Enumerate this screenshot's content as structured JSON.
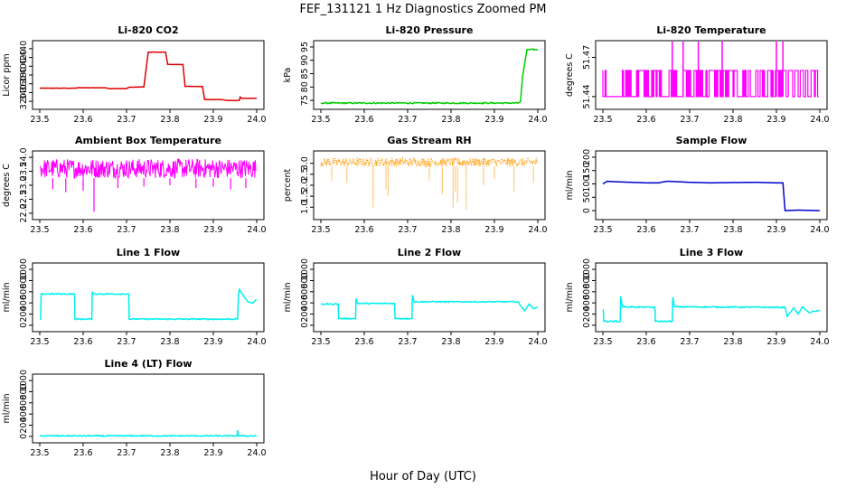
{
  "figure": {
    "title": "FEF_131121  1 Hz Diagnostics Zoomed PM",
    "xlabel": "Hour of Day (UTC)"
  },
  "chart_data": [
    {
      "type": "line",
      "title": "Li-820 CO2",
      "ylabel": "Licor ppm",
      "color": "#dd0000",
      "xlim": [
        23.5,
        24.0
      ],
      "xticks": [
        "23.5",
        "23.6",
        "23.7",
        "23.8",
        "23.9",
        "24.0"
      ],
      "ylim": [
        310,
        450
      ],
      "yticks": [
        "320",
        "340",
        "360",
        "380",
        "400",
        "420",
        "440"
      ],
      "series": [
        {
          "x": [
            23.5,
            23.58,
            23.59,
            23.65,
            23.66,
            23.7,
            23.705,
            23.74,
            23.75,
            23.79,
            23.795,
            23.83,
            23.835,
            23.875,
            23.88,
            23.92,
            23.93,
            23.96,
            23.962,
            23.965,
            23.97,
            24.0
          ],
          "y": [
            350,
            350,
            351,
            351,
            349,
            349,
            352,
            353,
            432,
            432,
            404,
            404,
            354,
            354,
            324,
            324,
            322,
            322,
            330,
            327,
            327,
            327
          ]
        }
      ]
    },
    {
      "type": "line",
      "title": "Li-820 Pressure",
      "ylabel": "kPa",
      "color": "#00cc00",
      "xlim": [
        23.5,
        24.0
      ],
      "xticks": [
        "23.5",
        "23.6",
        "23.7",
        "23.8",
        "23.9",
        "24.0"
      ],
      "ylim": [
        73,
        96
      ],
      "yticks": [
        "75",
        "80",
        "85",
        "90",
        "95"
      ],
      "series": [
        {
          "x": [
            23.5,
            23.9,
            23.91,
            23.955,
            23.96,
            23.965,
            23.97,
            23.975,
            24.0
          ],
          "y": [
            74,
            74,
            74,
            74,
            74.5,
            84,
            89,
            94,
            94
          ]
        }
      ]
    },
    {
      "type": "line",
      "title": "Li-820 Temperature",
      "ylabel": "degrees C",
      "color": "#ff00ff",
      "xlim": [
        23.5,
        24.0
      ],
      "xticks": [
        "23.5",
        "23.6",
        "23.7",
        "23.8",
        "23.9",
        "24.0"
      ],
      "ylim": [
        51.433,
        51.48
      ],
      "yticks": [
        "51.44",
        "51.47"
      ],
      "levels": [
        51.44,
        51.46,
        51.48
      ],
      "spikes_x": [
        23.66,
        23.685,
        23.72,
        23.775,
        23.9,
        23.915
      ]
    },
    {
      "type": "line",
      "title": "Ambient Box Temperature",
      "ylabel": "degrees C",
      "color": "#ff00ff",
      "xlim": [
        23.5,
        24.0
      ],
      "xticks": [
        "23.5",
        "23.6",
        "23.7",
        "23.8",
        "23.9",
        "24.0"
      ],
      "ylim": [
        21.9,
        24.1
      ],
      "yticks": [
        "22.0",
        "22.5",
        "23.0",
        "23.5",
        "24.0"
      ],
      "band": [
        23.25,
        23.95
      ],
      "dips": [
        [
          23.53,
          22.85
        ],
        [
          23.56,
          22.75
        ],
        [
          23.6,
          22.8
        ],
        [
          23.625,
          22.05
        ],
        [
          23.68,
          22.9
        ],
        [
          23.74,
          22.95
        ],
        [
          23.8,
          23.0
        ],
        [
          23.86,
          22.9
        ],
        [
          23.9,
          22.95
        ],
        [
          23.94,
          22.85
        ],
        [
          23.975,
          22.9
        ]
      ]
    },
    {
      "type": "scatter",
      "title": "Gas Stream RH",
      "ylabel": "percent",
      "color": "#ff9900",
      "xlim": [
        23.5,
        24.0
      ],
      "xticks": [
        "23.5",
        "23.6",
        "23.7",
        "23.8",
        "23.9",
        "24.0"
      ],
      "ylim": [
        0.6,
        3.4
      ],
      "yticks": [
        "1.0",
        "1.5",
        "2.0",
        "2.5",
        "3.0"
      ],
      "band": [
        2.85,
        3.25
      ],
      "dips": [
        [
          23.525,
          2.2
        ],
        [
          23.56,
          2.1
        ],
        [
          23.62,
          1.0
        ],
        [
          23.65,
          1.8
        ],
        [
          23.655,
          1.5
        ],
        [
          23.75,
          2.2
        ],
        [
          23.78,
          1.6
        ],
        [
          23.805,
          1.0
        ],
        [
          23.81,
          1.7
        ],
        [
          23.815,
          1.2
        ],
        [
          23.835,
          0.9
        ],
        [
          23.875,
          2.0
        ],
        [
          23.9,
          2.3
        ],
        [
          23.945,
          1.7
        ],
        [
          23.99,
          2.1
        ]
      ]
    },
    {
      "type": "line",
      "title": "Sample Flow",
      "ylabel": "ml/min",
      "color": "#0000cc",
      "xlim": [
        23.5,
        24.0
      ],
      "xticks": [
        "23.5",
        "23.6",
        "23.7",
        "23.8",
        "23.9",
        "24.0"
      ],
      "ylim": [
        -20,
        210
      ],
      "yticks": [
        "0",
        "50",
        "100",
        "150",
        "200"
      ],
      "series": [
        {
          "x": [
            23.5,
            23.51,
            23.53,
            23.6,
            23.63,
            23.64,
            23.65,
            23.7,
            23.75,
            23.8,
            23.85,
            23.9,
            23.915,
            23.92,
            23.95,
            24.0
          ],
          "y": [
            100,
            110,
            108,
            104,
            104,
            108,
            110,
            106,
            104,
            105,
            106,
            104,
            104,
            0,
            2,
            0
          ]
        }
      ]
    },
    {
      "type": "line",
      "title": "Line 1 Flow",
      "ylabel": "ml/min",
      "color": "#00eeee",
      "xlim": [
        23.5,
        24.0
      ],
      "xticks": [
        "23.5",
        "23.6",
        "23.7",
        "23.8",
        "23.9",
        "24.0"
      ],
      "ylim": [
        -50,
        1050
      ],
      "yticks": [
        "0",
        "200",
        "400",
        "600",
        "800",
        "1000"
      ],
      "series": [
        {
          "x": [
            23.5,
            23.502,
            23.503,
            23.58,
            23.581,
            23.62,
            23.621,
            23.623,
            23.7,
            23.705,
            23.706,
            23.955,
            23.956,
            23.958,
            23.96,
            23.97,
            23.98,
            23.99,
            24.0
          ],
          "y": [
            110,
            110,
            560,
            560,
            110,
            110,
            600,
            560,
            560,
            560,
            110,
            110,
            110,
            540,
            640,
            520,
            420,
            400,
            450
          ]
        }
      ]
    },
    {
      "type": "line",
      "title": "Line 2 Flow",
      "ylabel": "ml/min",
      "color": "#00eeee",
      "xlim": [
        23.5,
        24.0
      ],
      "xticks": [
        "23.5",
        "23.6",
        "23.7",
        "23.8",
        "23.9",
        "24.0"
      ],
      "ylim": [
        -50,
        1050
      ],
      "yticks": [
        "0",
        "200",
        "400",
        "600",
        "800",
        "1000"
      ],
      "series": [
        {
          "x": [
            23.5,
            23.54,
            23.541,
            23.58,
            23.581,
            23.585,
            23.67,
            23.671,
            23.71,
            23.711,
            23.715,
            23.955,
            23.96,
            23.97,
            23.98,
            23.99,
            24.0
          ],
          "y": [
            380,
            380,
            120,
            120,
            480,
            390,
            390,
            120,
            120,
            540,
            420,
            420,
            350,
            260,
            380,
            300,
            330
          ]
        }
      ]
    },
    {
      "type": "line",
      "title": "Line 3 Flow",
      "ylabel": "ml/min",
      "color": "#00eeee",
      "xlim": [
        23.5,
        24.0
      ],
      "xticks": [
        "23.5",
        "23.6",
        "23.7",
        "23.8",
        "23.9",
        "24.0"
      ],
      "ylim": [
        -50,
        1050
      ],
      "yticks": [
        "0",
        "200",
        "400",
        "600",
        "800",
        "1000"
      ],
      "series": [
        {
          "x": [
            23.5,
            23.501,
            23.502,
            23.54,
            23.541,
            23.545,
            23.62,
            23.621,
            23.66,
            23.661,
            23.665,
            23.92,
            23.925,
            23.94,
            23.95,
            23.96,
            23.975,
            23.99,
            24.0
          ],
          "y": [
            280,
            280,
            70,
            70,
            520,
            330,
            320,
            70,
            70,
            500,
            330,
            320,
            160,
            310,
            200,
            330,
            230,
            250,
            260
          ]
        }
      ]
    },
    {
      "type": "line",
      "title": "Line 4 (LT) Flow",
      "ylabel": "ml/min",
      "color": "#00eeee",
      "xlim": [
        23.5,
        24.0
      ],
      "xticks": [
        "23.5",
        "23.6",
        "23.7",
        "23.8",
        "23.9",
        "24.0"
      ],
      "ylim": [
        -50,
        1050
      ],
      "yticks": [
        "0",
        "200",
        "400",
        "600",
        "800",
        "1000"
      ],
      "series": [
        {
          "x": [
            23.5,
            23.955,
            23.956,
            23.957,
            23.958,
            24.0
          ],
          "y": [
            10,
            10,
            110,
            60,
            10,
            10
          ]
        }
      ]
    }
  ]
}
